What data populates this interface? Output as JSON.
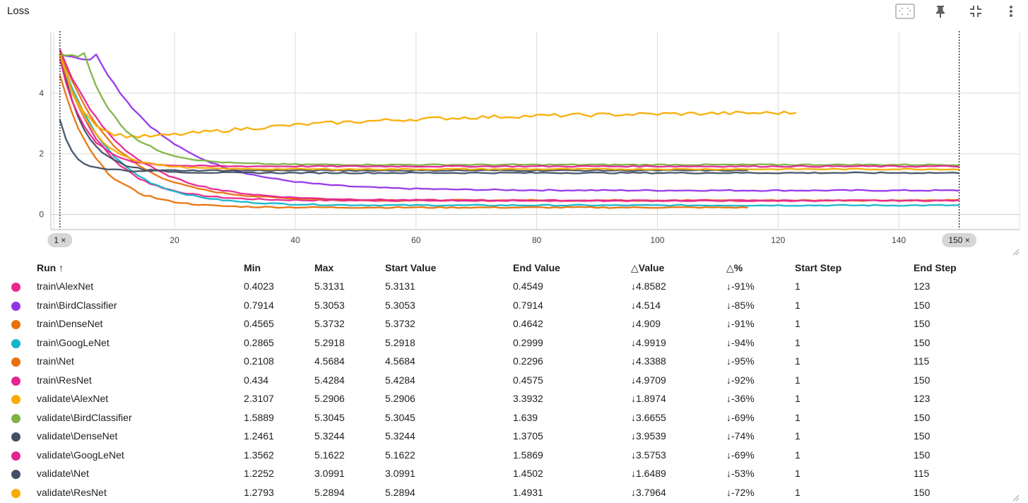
{
  "card": {
    "title": "Loss"
  },
  "toolbar": {
    "icons": [
      "fit-domain-icon",
      "pin-icon",
      "collapse-icon",
      "more-vert-icon"
    ]
  },
  "chart_data": {
    "type": "line",
    "title": "Loss",
    "xlabel": "",
    "ylabel": "",
    "xlim": [
      -0.5,
      160
    ],
    "ylim": [
      -0.5,
      6
    ],
    "x_ticks": [
      "20",
      "40",
      "60",
      "80",
      "100",
      "120",
      "140"
    ],
    "y_ticks": [
      "0",
      "2",
      "4"
    ],
    "grid": true,
    "crosshair_markers": [
      {
        "step": 1,
        "label": "1 ×"
      },
      {
        "step": 150,
        "label": "150 ×"
      }
    ],
    "series": [
      {
        "name": "train\\AlexNet",
        "color": "#e7298a",
        "start": 5.3131,
        "end": 0.4549,
        "min": 0.4023,
        "start_step": 1,
        "end_step": 123,
        "tau": 7
      },
      {
        "name": "train\\BirdClassifier",
        "color": "#9334e6",
        "start": 5.3053,
        "end": 0.7914,
        "min": 0.7914,
        "start_step": 1,
        "end_step": 150,
        "tau": 12,
        "delay": 6
      },
      {
        "name": "train\\DenseNet",
        "color": "#e8710a",
        "start": 5.3732,
        "end": 0.4642,
        "min": 0.4565,
        "start_step": 1,
        "end_step": 150,
        "tau": 9
      },
      {
        "name": "train\\GoogLeNet",
        "color": "#12b5cb",
        "start": 5.2918,
        "end": 0.2999,
        "min": 0.2865,
        "start_step": 1,
        "end_step": 150,
        "tau": 8
      },
      {
        "name": "train\\Net",
        "color": "#e8710a",
        "start": 4.5684,
        "end": 0.2296,
        "min": 0.2108,
        "start_step": 1,
        "end_step": 115,
        "tau": 6
      },
      {
        "name": "train\\ResNet",
        "color": "#e52592",
        "start": 5.4284,
        "end": 0.4575,
        "min": 0.434,
        "start_step": 1,
        "end_step": 150,
        "tau": 10
      },
      {
        "name": "validate\\AlexNet",
        "color": "#f9ab00",
        "start": 5.2906,
        "end": 3.3932,
        "min": 2.3107,
        "start_step": 1,
        "end_step": 123,
        "tau": 4,
        "rise": true
      },
      {
        "name": "validate\\BirdClassifier",
        "color": "#7cb342",
        "start": 5.3045,
        "end": 1.639,
        "min": 1.5889,
        "start_step": 1,
        "end_step": 150,
        "tau": 6,
        "delay": 4
      },
      {
        "name": "validate\\DenseNet",
        "color": "#425066",
        "start": 5.3244,
        "end": 1.3705,
        "min": 1.2461,
        "start_step": 1,
        "end_step": 150,
        "tau": 4
      },
      {
        "name": "validate\\GoogLeNet",
        "color": "#e52592",
        "start": 5.1622,
        "end": 1.5869,
        "min": 1.3562,
        "start_step": 1,
        "end_step": 150,
        "tau": 4
      },
      {
        "name": "validate\\Net",
        "color": "#425066",
        "start": 3.0991,
        "end": 1.4502,
        "min": 1.2252,
        "start_step": 1,
        "end_step": 115,
        "tau": 2
      },
      {
        "name": "validate\\ResNet",
        "color": "#f9ab00",
        "start": 5.2894,
        "end": 1.4931,
        "min": 1.2793,
        "start_step": 1,
        "end_step": 150,
        "tau": 5
      }
    ]
  },
  "table": {
    "headers": {
      "run": "Run ↑",
      "min": "Min",
      "max": "Max",
      "start_value": "Start Value",
      "end_value": "End Value",
      "delta_value": "△Value",
      "delta_pct": "△%",
      "start_step": "Start Step",
      "end_step": "End Step"
    },
    "rows": [
      {
        "color": "#e7298a",
        "run": "train\\AlexNet",
        "min": "0.4023",
        "max": "5.3131",
        "start_value": "5.3131",
        "end_value": "0.4549",
        "delta_value": "↓4.8582",
        "delta_pct": "↓-91%",
        "start_step": "1",
        "end_step": "123"
      },
      {
        "color": "#9334e6",
        "run": "train\\BirdClassifier",
        "min": "0.7914",
        "max": "5.3053",
        "start_value": "5.3053",
        "end_value": "0.7914",
        "delta_value": "↓4.514",
        "delta_pct": "↓-85%",
        "start_step": "1",
        "end_step": "150"
      },
      {
        "color": "#e8710a",
        "run": "train\\DenseNet",
        "min": "0.4565",
        "max": "5.3732",
        "start_value": "5.3732",
        "end_value": "0.4642",
        "delta_value": "↓4.909",
        "delta_pct": "↓-91%",
        "start_step": "1",
        "end_step": "150"
      },
      {
        "color": "#12b5cb",
        "run": "train\\GoogLeNet",
        "min": "0.2865",
        "max": "5.2918",
        "start_value": "5.2918",
        "end_value": "0.2999",
        "delta_value": "↓4.9919",
        "delta_pct": "↓-94%",
        "start_step": "1",
        "end_step": "150"
      },
      {
        "color": "#e8710a",
        "run": "train\\Net",
        "min": "0.2108",
        "max": "4.5684",
        "start_value": "4.5684",
        "end_value": "0.2296",
        "delta_value": "↓4.3388",
        "delta_pct": "↓-95%",
        "start_step": "1",
        "end_step": "115"
      },
      {
        "color": "#e52592",
        "run": "train\\ResNet",
        "min": "0.434",
        "max": "5.4284",
        "start_value": "5.4284",
        "end_value": "0.4575",
        "delta_value": "↓4.9709",
        "delta_pct": "↓-92%",
        "start_step": "1",
        "end_step": "150"
      },
      {
        "color": "#f9ab00",
        "run": "validate\\AlexNet",
        "min": "2.3107",
        "max": "5.2906",
        "start_value": "5.2906",
        "end_value": "3.3932",
        "delta_value": "↓1.8974",
        "delta_pct": "↓-36%",
        "start_step": "1",
        "end_step": "123"
      },
      {
        "color": "#7cb342",
        "run": "validate\\BirdClassifier",
        "min": "1.5889",
        "max": "5.3045",
        "start_value": "5.3045",
        "end_value": "1.639",
        "delta_value": "↓3.6655",
        "delta_pct": "↓-69%",
        "start_step": "1",
        "end_step": "150"
      },
      {
        "color": "#425066",
        "run": "validate\\DenseNet",
        "min": "1.2461",
        "max": "5.3244",
        "start_value": "5.3244",
        "end_value": "1.3705",
        "delta_value": "↓3.9539",
        "delta_pct": "↓-74%",
        "start_step": "1",
        "end_step": "150"
      },
      {
        "color": "#e52592",
        "run": "validate\\GoogLeNet",
        "min": "1.3562",
        "max": "5.1622",
        "start_value": "5.1622",
        "end_value": "1.5869",
        "delta_value": "↓3.5753",
        "delta_pct": "↓-69%",
        "start_step": "1",
        "end_step": "150"
      },
      {
        "color": "#425066",
        "run": "validate\\Net",
        "min": "1.2252",
        "max": "3.0991",
        "start_value": "3.0991",
        "end_value": "1.4502",
        "delta_value": "↓1.6489",
        "delta_pct": "↓-53%",
        "start_step": "1",
        "end_step": "115"
      },
      {
        "color": "#f9ab00",
        "run": "validate\\ResNet",
        "min": "1.2793",
        "max": "5.2894",
        "start_value": "5.2894",
        "end_value": "1.4931",
        "delta_value": "↓3.7964",
        "delta_pct": "↓-72%",
        "start_step": "1",
        "end_step": "150"
      }
    ]
  }
}
